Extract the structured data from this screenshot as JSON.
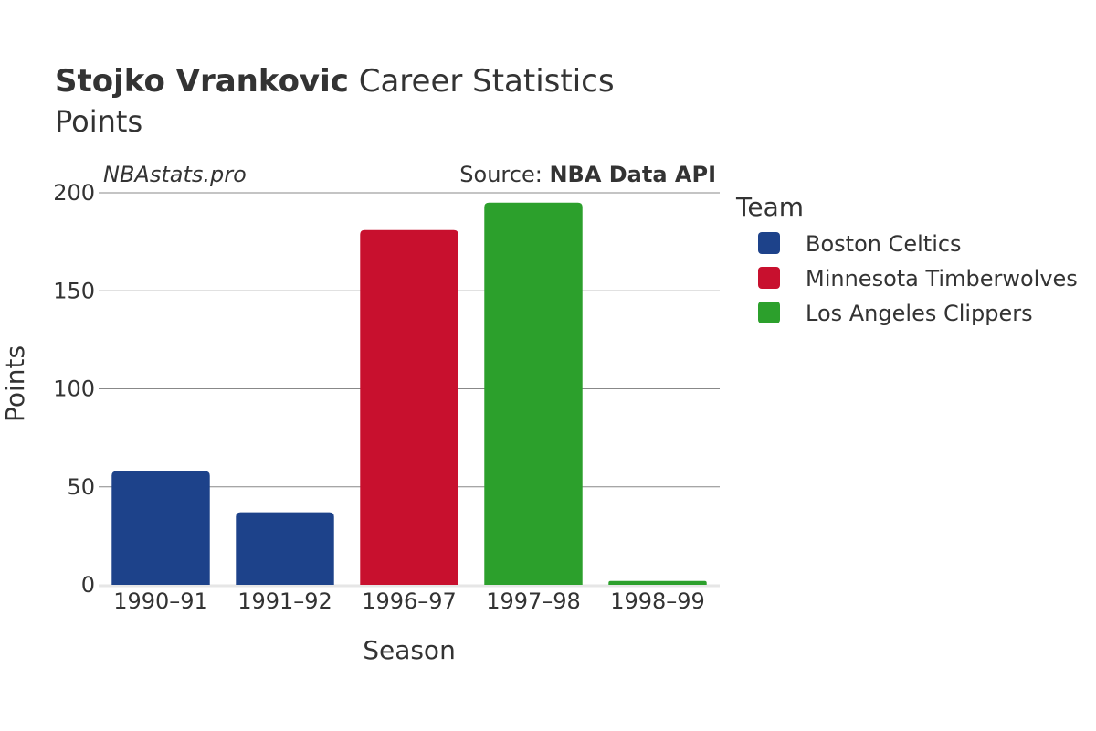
{
  "header": {
    "title_bold": "Stojko Vrankovic",
    "title_rest": "Career Statistics",
    "subtitle": "Points"
  },
  "watermark": "NBAstats.pro",
  "source": {
    "prefix": "Source: ",
    "name": "NBA Data API"
  },
  "legend": {
    "title": "Team",
    "items": [
      {
        "label": "Boston Celtics",
        "color": "#1d428a"
      },
      {
        "label": "Minnesota Timberwolves",
        "color": "#c8102e"
      },
      {
        "label": "Los Angeles Clippers",
        "color": "#2ca02c"
      }
    ]
  },
  "chart_data": {
    "type": "bar",
    "title": "Stojko Vrankovic Career Statistics",
    "subtitle": "Points",
    "xlabel": "Season",
    "ylabel": "Points",
    "ylim": [
      0,
      200
    ],
    "yticks": [
      0,
      50,
      100,
      150,
      200
    ],
    "grid": true,
    "legend_position": "right",
    "categories": [
      "1990–91",
      "1991–92",
      "1996–97",
      "1997–98",
      "1998–99"
    ],
    "series": [
      {
        "name": "Boston Celtics",
        "color": "#1d428a",
        "values": [
          58,
          37,
          null,
          null,
          null
        ]
      },
      {
        "name": "Minnesota Timberwolves",
        "color": "#c8102e",
        "values": [
          null,
          null,
          181,
          null,
          null
        ]
      },
      {
        "name": "Los Angeles Clippers",
        "color": "#2ca02c",
        "values": [
          null,
          null,
          null,
          195,
          2
        ]
      }
    ]
  }
}
